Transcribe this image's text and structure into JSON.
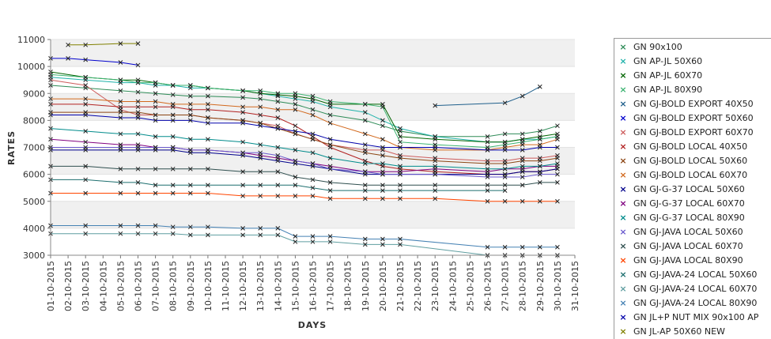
{
  "chart_data": {
    "type": "line",
    "title": "",
    "xlabel": "DAYS",
    "ylabel": "RATES",
    "ylim": [
      3000,
      11000
    ],
    "yticks": [
      "3000",
      "4000",
      "5000",
      "6000",
      "7000",
      "8000",
      "9000",
      "10000",
      "11000"
    ],
    "categories": [
      "01-10-2015",
      "02-10-2015",
      "03-10-2015",
      "04-10-2015",
      "05-10-2015",
      "06-10-2015",
      "07-10-2015",
      "08-10-2015",
      "09-10-2015",
      "10-10-2015",
      "11-10-2015",
      "12-10-2015",
      "13-10-2015",
      "14-10-2015",
      "15-10-2015",
      "16-10-2015",
      "17-10-2015",
      "18-10-2015",
      "19-10-2015",
      "20-10-2015",
      "21-10-2015",
      "22-10-2015",
      "23-10-2015",
      "24-10-2015",
      "25-10-2015",
      "26-10-2015",
      "27-10-2015",
      "28-10-2015",
      "29-10-2015",
      "30-10-2015",
      "31-10-2015"
    ],
    "grid": true,
    "legend_position": "right",
    "series": [
      {
        "name": "GN 90x100",
        "color": "#2e8b57",
        "values": [
          9300,
          null,
          9200,
          null,
          9100,
          9050,
          9000,
          8950,
          8900,
          8900,
          null,
          8850,
          8800,
          8700,
          8600,
          8400,
          8200,
          null,
          8000,
          7800,
          7600,
          null,
          7400,
          null,
          null,
          7400,
          7500,
          7500,
          7600,
          7800,
          null
        ]
      },
      {
        "name": "GN AP-JL 50X60",
        "color": "#20b2aa",
        "values": [
          9600,
          null,
          9500,
          null,
          9400,
          9400,
          9300,
          9300,
          9200,
          9200,
          null,
          9100,
          9000,
          8900,
          8800,
          8700,
          8500,
          null,
          8300,
          8000,
          7700,
          null,
          7400,
          null,
          null,
          7200,
          7200,
          7300,
          7300,
          7400,
          null
        ]
      },
      {
        "name": "GN AP-JL 60X70",
        "color": "#006400",
        "values": [
          9800,
          null,
          9600,
          null,
          9500,
          9500,
          9400,
          9300,
          9300,
          9200,
          null,
          9100,
          9000,
          8950,
          8900,
          8800,
          8600,
          null,
          8600,
          8600,
          7400,
          null,
          7300,
          null,
          null,
          7200,
          7200,
          7300,
          7400,
          7500,
          null
        ]
      },
      {
        "name": "GN AP-JL 80X90",
        "color": "#3cb371",
        "values": [
          9700,
          null,
          9600,
          null,
          9500,
          9400,
          9400,
          9300,
          9300,
          9200,
          null,
          9100,
          9100,
          9000,
          9000,
          8900,
          8700,
          null,
          8600,
          8500,
          7200,
          null,
          7100,
          null,
          null,
          7000,
          7100,
          7200,
          7300,
          7400,
          null
        ]
      },
      {
        "name": "GN GJ-BOLD EXPORT 40X50",
        "color": "#1f5f8b",
        "values": [
          null,
          null,
          null,
          null,
          null,
          null,
          null,
          null,
          null,
          null,
          null,
          null,
          null,
          null,
          null,
          null,
          null,
          null,
          null,
          null,
          null,
          null,
          8550,
          null,
          null,
          null,
          8650,
          8900,
          9250,
          null,
          null
        ]
      },
      {
        "name": "GN GJ-BOLD EXPORT 50X60",
        "color": "#0000cd",
        "values": [
          10300,
          10300,
          10250,
          null,
          10150,
          10050,
          null,
          null,
          null,
          null,
          null,
          null,
          null,
          null,
          null,
          null,
          null,
          null,
          null,
          null,
          null,
          null,
          null,
          null,
          null,
          null,
          null,
          null,
          null,
          null,
          null
        ]
      },
      {
        "name": "GN GJ-BOLD EXPORT 60X70",
        "color": "#cd5c5c",
        "values": [
          9500,
          null,
          9300,
          null,
          8400,
          8200,
          8200,
          8200,
          8200,
          8100,
          null,
          8000,
          7900,
          7800,
          7500,
          7300,
          7100,
          null,
          6900,
          6900,
          6700,
          null,
          6600,
          null,
          null,
          6500,
          6500,
          6600,
          6600,
          6700,
          null
        ]
      },
      {
        "name": "GN GJ-BOLD LOCAL 40X50",
        "color": "#b22222",
        "values": [
          8600,
          null,
          8600,
          null,
          8500,
          8500,
          8500,
          8500,
          8400,
          8400,
          null,
          8300,
          8200,
          8100,
          7800,
          7400,
          7000,
          null,
          6500,
          6300,
          6200,
          null,
          6100,
          null,
          null,
          6000,
          6000,
          6100,
          6100,
          6200,
          null
        ]
      },
      {
        "name": "GN GJ-BOLD LOCAL 50X60",
        "color": "#8b4513",
        "values": [
          8300,
          null,
          8300,
          null,
          8300,
          8300,
          8200,
          8200,
          8200,
          8100,
          null,
          8000,
          7900,
          7700,
          7500,
          7300,
          7100,
          null,
          6800,
          6700,
          6600,
          null,
          6500,
          null,
          null,
          6400,
          6400,
          6500,
          6500,
          6600,
          null
        ]
      },
      {
        "name": "GN GJ-BOLD LOCAL 60X70",
        "color": "#d2691e",
        "values": [
          8800,
          null,
          8800,
          null,
          8700,
          8700,
          8700,
          8600,
          8600,
          8600,
          null,
          8500,
          8500,
          8400,
          8400,
          8200,
          7900,
          null,
          7500,
          7300,
          7000,
          null,
          6900,
          null,
          null,
          6900,
          7000,
          7100,
          7100,
          7300,
          null
        ]
      },
      {
        "name": "GN GJ-G-37 LOCAL 50X60",
        "color": "#00008b",
        "values": [
          6900,
          null,
          6900,
          null,
          6900,
          6900,
          6900,
          6900,
          6800,
          6800,
          null,
          6700,
          6600,
          6500,
          6400,
          6300,
          6200,
          null,
          6000,
          6000,
          6000,
          null,
          6000,
          null,
          null,
          6000,
          6000,
          6100,
          6100,
          6200,
          null
        ]
      },
      {
        "name": "GN GJ-G-37 LOCAL 60X70",
        "color": "#800080",
        "values": [
          7300,
          null,
          7200,
          null,
          7100,
          7100,
          7000,
          7000,
          6900,
          6900,
          null,
          6800,
          6700,
          6600,
          6500,
          6400,
          6300,
          null,
          6100,
          6100,
          6100,
          null,
          6200,
          null,
          null,
          6100,
          6200,
          6200,
          6300,
          6300,
          null
        ]
      },
      {
        "name": "GN GJ-G-37 LOCAL 80X90",
        "color": "#008b8b",
        "values": [
          7700,
          null,
          7600,
          null,
          7500,
          7500,
          7400,
          7400,
          7300,
          7300,
          null,
          7200,
          7100,
          7000,
          6900,
          6800,
          6600,
          null,
          6400,
          6400,
          6300,
          null,
          6300,
          null,
          null,
          6200,
          6200,
          6300,
          6300,
          6400,
          null
        ]
      },
      {
        "name": "GN GJ-JAVA LOCAL 50X60",
        "color": "#6a5acd",
        "values": [
          7000,
          null,
          7000,
          null,
          7000,
          7000,
          7000,
          7000,
          6900,
          6900,
          null,
          6800,
          6800,
          6700,
          6500,
          6400,
          6200,
          null,
          6100,
          6000,
          6000,
          null,
          6000,
          null,
          null,
          5900,
          5900,
          5900,
          6000,
          6000,
          null
        ]
      },
      {
        "name": "GN GJ-JAVA LOCAL 60X70",
        "color": "#2f4f4f",
        "values": [
          6300,
          null,
          6300,
          null,
          6200,
          6200,
          6200,
          6200,
          6200,
          6200,
          null,
          6100,
          6100,
          6100,
          5900,
          5800,
          5700,
          null,
          5600,
          5600,
          5600,
          null,
          5600,
          null,
          null,
          5600,
          5600,
          5600,
          5700,
          5700,
          null
        ]
      },
      {
        "name": "GN GJ-JAVA LOCAL 80X90",
        "color": "#ff4500",
        "values": [
          5300,
          null,
          5300,
          null,
          5300,
          5300,
          5300,
          5300,
          5300,
          5300,
          null,
          5200,
          5200,
          5200,
          5200,
          5200,
          5100,
          null,
          5100,
          5100,
          5100,
          null,
          5100,
          null,
          null,
          5000,
          5000,
          5000,
          5000,
          5000,
          null
        ]
      },
      {
        "name": "GN GJ-JAVA-24 LOCAL 50X60",
        "color": "#1c6e6e",
        "values": [
          5800,
          null,
          5800,
          null,
          5700,
          5700,
          5600,
          5600,
          5600,
          5600,
          null,
          5600,
          5600,
          5600,
          5600,
          5500,
          5400,
          null,
          5400,
          5400,
          5400,
          null,
          5400,
          null,
          null,
          5400,
          5400,
          null,
          null,
          null,
          null
        ]
      },
      {
        "name": "GN GJ-JAVA-24 LOCAL 60X70",
        "color": "#5f9ea0",
        "values": [
          3800,
          null,
          3800,
          null,
          3800,
          3800,
          3800,
          3800,
          3750,
          3750,
          null,
          3750,
          3750,
          3750,
          3500,
          3500,
          3500,
          null,
          3400,
          3400,
          3400,
          null,
          null,
          null,
          null,
          3000,
          3000,
          3000,
          3000,
          3000,
          null
        ]
      },
      {
        "name": "GN GJ-JAVA-24 LOCAL 80X90",
        "color": "#4682b4",
        "values": [
          4100,
          null,
          4100,
          null,
          4100,
          4100,
          4100,
          4050,
          4050,
          4050,
          null,
          4000,
          4000,
          4000,
          3700,
          3700,
          3700,
          null,
          3600,
          3600,
          3600,
          null,
          null,
          null,
          null,
          3300,
          3300,
          3300,
          3300,
          3300,
          null
        ]
      },
      {
        "name": "GN JL+P NUT MIX 90x100 AP",
        "color": "#0000aa",
        "values": [
          8200,
          null,
          8200,
          null,
          8100,
          8100,
          8000,
          8000,
          8000,
          7900,
          null,
          7900,
          7800,
          7700,
          7600,
          7500,
          7300,
          null,
          7100,
          7000,
          7000,
          null,
          7000,
          null,
          null,
          6900,
          6900,
          6900,
          7000,
          7000,
          null
        ]
      },
      {
        "name": "GN JL-AP 50X60 NEW",
        "color": "#808000",
        "values": [
          null,
          10800,
          10800,
          null,
          10850,
          10850,
          null,
          null,
          null,
          null,
          null,
          null,
          null,
          null,
          null,
          null,
          null,
          null,
          null,
          null,
          null,
          null,
          null,
          null,
          null,
          null,
          null,
          null,
          null,
          null,
          null
        ]
      }
    ]
  }
}
